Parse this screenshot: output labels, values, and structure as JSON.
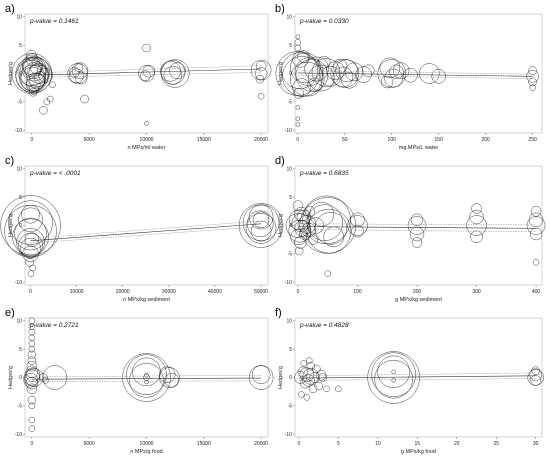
{
  "figure": {
    "background": "#ffffff",
    "ink": "#000000"
  },
  "chart_data": [
    {
      "id": "a",
      "type": "scatter",
      "panel_label": "a)",
      "annotation": "p-value = 0.1461",
      "xlabel": "n MPs/ml water",
      "ylabel": "Hedges'g",
      "xlim": [
        -600,
        20600
      ],
      "ylim": [
        -10.5,
        10.5
      ],
      "xticks": [
        0,
        5000,
        10000,
        15000,
        20000
      ],
      "xtick_labels": [
        "0",
        "5000",
        "10000",
        "15000",
        "20000"
      ],
      "yticks": [
        -10,
        -5,
        0,
        5,
        10
      ],
      "ytick_labels": [
        "-10",
        "-5",
        "0",
        "5",
        "10"
      ],
      "fit": {
        "x": [
          0,
          20000
        ],
        "y": [
          -0.3,
          0.8
        ],
        "ci_low": [
          -0.7,
          0.2
        ],
        "ci_high": [
          0.1,
          1.4
        ]
      },
      "points": [
        [
          0,
          0,
          20
        ],
        [
          0,
          -0.5,
          16
        ],
        [
          0,
          0.3,
          14
        ],
        [
          50,
          1.5,
          10
        ],
        [
          80,
          -1,
          12
        ],
        [
          100,
          0.5,
          8
        ],
        [
          120,
          -2,
          7
        ],
        [
          20,
          2.5,
          6
        ],
        [
          150,
          -0.2,
          18
        ],
        [
          200,
          0.8,
          12
        ],
        [
          300,
          -1.5,
          9
        ],
        [
          400,
          1,
          6
        ],
        [
          500,
          -0.4,
          11
        ],
        [
          250,
          0.2,
          15
        ],
        [
          60,
          -0.8,
          13
        ],
        [
          40,
          1,
          9
        ],
        [
          180,
          -2.8,
          5
        ],
        [
          350,
          2,
          4
        ],
        [
          1200,
          -0.3,
          7
        ],
        [
          600,
          0,
          10
        ],
        [
          900,
          0.6,
          5
        ],
        [
          700,
          -0.7,
          6
        ],
        [
          100,
          -3.3,
          4
        ],
        [
          -50,
          3.2,
          5
        ],
        [
          450,
          -1.3,
          8
        ],
        [
          1000,
          -6.5,
          4
        ],
        [
          1300,
          -5,
          3
        ],
        [
          1600,
          -4.5,
          3
        ],
        [
          1800,
          -2,
          3
        ],
        [
          4000,
          0,
          10
        ],
        [
          4200,
          0.5,
          8
        ],
        [
          3900,
          -0.4,
          7
        ],
        [
          4300,
          -0.8,
          6
        ],
        [
          4600,
          -4.5,
          4
        ],
        [
          3700,
          0.2,
          5
        ],
        [
          4100,
          1,
          4
        ],
        [
          10000,
          4.5,
          4
        ],
        [
          10000,
          0,
          8
        ],
        [
          10200,
          0.4,
          6
        ],
        [
          9900,
          -0.4,
          5
        ],
        [
          10000,
          -8.8,
          2
        ],
        [
          12300,
          0.2,
          12
        ],
        [
          12500,
          0,
          14
        ],
        [
          12100,
          0.4,
          10
        ],
        [
          12300,
          -0.3,
          9
        ],
        [
          12700,
          0.5,
          8
        ],
        [
          20000,
          0.6,
          10
        ],
        [
          20000,
          0,
          6
        ],
        [
          20000,
          1.3,
          5
        ],
        [
          19900,
          -1,
          4
        ],
        [
          20000,
          -4,
          3
        ]
      ]
    },
    {
      "id": "b",
      "type": "scatter",
      "panel_label": "b)",
      "annotation": "p-value = 0.0330",
      "xlabel": "mg MPs/L water",
      "ylabel": "Hedges'g",
      "xlim": [
        -3,
        260
      ],
      "ylim": [
        -10.5,
        10.5
      ],
      "xticks": [
        0,
        50,
        100,
        150,
        200,
        250
      ],
      "xtick_labels": [
        "0",
        "50",
        "100",
        "150",
        "200",
        "250"
      ],
      "yticks": [
        -10,
        -5,
        0,
        5,
        10
      ],
      "ytick_labels": [
        "-10",
        "-5",
        "0",
        "5",
        "10"
      ],
      "fit": {
        "x": [
          0,
          250
        ],
        "y": [
          0.1,
          -0.5
        ],
        "ci_low": [
          -0.3,
          -0.9
        ],
        "ci_high": [
          0.5,
          -0.1
        ]
      },
      "points": [
        [
          0,
          0,
          22
        ],
        [
          2,
          0.5,
          18
        ],
        [
          5,
          -0.5,
          20
        ],
        [
          8,
          1,
          15
        ],
        [
          10,
          -1,
          17
        ],
        [
          12,
          0.3,
          14
        ],
        [
          15,
          -0.3,
          16
        ],
        [
          20,
          0.8,
          12
        ],
        [
          25,
          -0.8,
          13
        ],
        [
          30,
          0.2,
          14
        ],
        [
          3,
          2.5,
          8
        ],
        [
          4,
          -2.5,
          9
        ],
        [
          6,
          3,
          6
        ],
        [
          1,
          -3.5,
          5
        ],
        [
          0,
          5.5,
          3
        ],
        [
          0,
          6.5,
          2
        ],
        [
          0,
          -6,
          2
        ],
        [
          0,
          -8,
          2
        ],
        [
          0,
          -9,
          2
        ],
        [
          0,
          4.5,
          3
        ],
        [
          18,
          -2,
          7
        ],
        [
          28,
          2,
          6
        ],
        [
          35,
          -0.5,
          10
        ],
        [
          40,
          0.5,
          9
        ],
        [
          50,
          0,
          14
        ],
        [
          52,
          0.5,
          11
        ],
        [
          48,
          -0.6,
          10
        ],
        [
          55,
          -1.2,
          8
        ],
        [
          45,
          1.3,
          7
        ],
        [
          60,
          0.3,
          9
        ],
        [
          70,
          -0.2,
          8
        ],
        [
          75,
          0.5,
          6
        ],
        [
          100,
          0,
          14
        ],
        [
          98,
          1,
          10
        ],
        [
          102,
          -0.8,
          9
        ],
        [
          105,
          0.3,
          7
        ],
        [
          95,
          -1.5,
          6
        ],
        [
          110,
          0.5,
          8
        ],
        [
          120,
          -0.3,
          7
        ],
        [
          140,
          0,
          10
        ],
        [
          150,
          -0.5,
          7
        ],
        [
          250,
          -0.5,
          6
        ],
        [
          250,
          -1.5,
          4
        ],
        [
          250,
          0.5,
          4
        ],
        [
          250,
          -2.5,
          3
        ]
      ]
    },
    {
      "id": "c",
      "type": "scatter",
      "panel_label": "c)",
      "annotation": "p-value = < .0001",
      "xlabel": "n MPs/kg sediment",
      "ylabel": "Hedges'g",
      "xlim": [
        -1200,
        51500
      ],
      "ylim": [
        -10.5,
        10.5
      ],
      "xticks": [
        0,
        10000,
        20000,
        30000,
        40000,
        50000
      ],
      "xtick_labels": [
        "0",
        "10000",
        "20000",
        "30000",
        "40000",
        "50000"
      ],
      "yticks": [
        -10,
        -5,
        0,
        5,
        10
      ],
      "ytick_labels": [
        "-10",
        "-5",
        "0",
        "5",
        "10"
      ],
      "fit": {
        "x": [
          0,
          50000
        ],
        "y": [
          -2.7,
          0.3
        ],
        "ci_low": [
          -3.1,
          -0.2
        ],
        "ci_high": [
          -2.3,
          0.8
        ]
      },
      "points": [
        [
          0,
          0,
          30
        ],
        [
          0,
          -1,
          26
        ],
        [
          0,
          0.5,
          22
        ],
        [
          0,
          -2,
          18
        ],
        [
          0,
          -3,
          14
        ],
        [
          0,
          1,
          12
        ],
        [
          0,
          -4,
          10
        ],
        [
          0,
          -5,
          8
        ],
        [
          0,
          2,
          9
        ],
        [
          300,
          -2.5,
          7
        ],
        [
          -200,
          -6.5,
          4
        ],
        [
          100,
          -8.5,
          3
        ],
        [
          500,
          -7.5,
          3
        ],
        [
          0,
          -1.5,
          16
        ],
        [
          0,
          -3.5,
          12
        ],
        [
          50000,
          0,
          22
        ],
        [
          50000,
          0.5,
          18
        ],
        [
          50000,
          -0.5,
          15
        ],
        [
          50000,
          1.5,
          12
        ],
        [
          50000,
          -1,
          10
        ],
        [
          49800,
          0.3,
          13
        ],
        [
          50000,
          1,
          8
        ]
      ]
    },
    {
      "id": "d",
      "type": "scatter",
      "panel_label": "d)",
      "annotation": "p-value = 0.6835",
      "xlabel": "g MPs/kg sediment",
      "ylabel": "Hedges'g",
      "xlim": [
        -5,
        410
      ],
      "ylim": [
        -10.5,
        10.5
      ],
      "xticks": [
        0,
        100,
        200,
        300,
        400
      ],
      "xtick_labels": [
        "0",
        "100",
        "200",
        "300",
        "400"
      ],
      "yticks": [
        -10,
        -5,
        0,
        5,
        10
      ],
      "ytick_labels": [
        "-10",
        "-5",
        "0",
        "5",
        "10"
      ],
      "fit": {
        "x": [
          0,
          400
        ],
        "y": [
          -0.2,
          -0.5
        ],
        "ci_low": [
          -0.7,
          -1.1
        ],
        "ci_high": [
          0.3,
          0.1
        ]
      },
      "points": [
        [
          0,
          0,
          12
        ],
        [
          2,
          1,
          10
        ],
        [
          3,
          -1,
          11
        ],
        [
          5,
          0.5,
          9
        ],
        [
          1,
          -2,
          8
        ],
        [
          6,
          2,
          7
        ],
        [
          4,
          -3,
          6
        ],
        [
          8,
          -0.5,
          8
        ],
        [
          10,
          1.5,
          7
        ],
        [
          12,
          -1.5,
          6
        ],
        [
          0,
          3.5,
          5
        ],
        [
          2,
          -4.5,
          4
        ],
        [
          15,
          0.2,
          9
        ],
        [
          18,
          -0.8,
          7
        ],
        [
          20,
          2.5,
          5
        ],
        [
          25,
          -2.5,
          5
        ],
        [
          30,
          0,
          8
        ],
        [
          50,
          0,
          28
        ],
        [
          48,
          1,
          24
        ],
        [
          52,
          -1,
          22
        ],
        [
          45,
          0.5,
          18
        ],
        [
          55,
          -0.5,
          16
        ],
        [
          40,
          2,
          12
        ],
        [
          60,
          -2,
          10
        ],
        [
          50,
          -8.5,
          3
        ],
        [
          100,
          0,
          10
        ],
        [
          100,
          1,
          7
        ],
        [
          100,
          -1,
          6
        ],
        [
          200,
          0,
          9
        ],
        [
          200,
          -1.5,
          7
        ],
        [
          200,
          1,
          6
        ],
        [
          200,
          -3,
          5
        ],
        [
          300,
          0,
          10
        ],
        [
          300,
          1.5,
          7
        ],
        [
          300,
          -2,
          6
        ],
        [
          300,
          3,
          5
        ],
        [
          400,
          0,
          9
        ],
        [
          400,
          1,
          7
        ],
        [
          400,
          -1.5,
          6
        ],
        [
          400,
          2.5,
          5
        ],
        [
          400,
          -6.5,
          3
        ]
      ]
    },
    {
      "id": "e",
      "type": "scatter",
      "panel_label": "e)",
      "annotation": "p-value = 0.2721",
      "xlabel": "n MPs/g food",
      "ylabel": "Hedges'g",
      "xlim": [
        -600,
        20600
      ],
      "ylim": [
        -10.5,
        10.5
      ],
      "xticks": [
        0,
        5000,
        10000,
        15000,
        20000
      ],
      "xtick_labels": [
        "0",
        "5000",
        "10000",
        "15000",
        "20000"
      ],
      "yticks": [
        -10,
        -5,
        0,
        5,
        10
      ],
      "ytick_labels": [
        "-10",
        "-5",
        "0",
        "5",
        "10"
      ],
      "fit": {
        "x": [
          0,
          20000
        ],
        "y": [
          -0.3,
          -0.1
        ],
        "ci_low": [
          -0.7,
          -0.6
        ],
        "ci_high": [
          0.1,
          0.4
        ]
      },
      "points": [
        [
          0,
          0,
          8
        ],
        [
          0,
          1,
          6
        ],
        [
          0,
          -1,
          6
        ],
        [
          0,
          2,
          5
        ],
        [
          0,
          -2,
          5
        ],
        [
          0,
          3,
          4
        ],
        [
          0,
          4,
          4
        ],
        [
          0,
          5,
          3
        ],
        [
          0,
          -4,
          4
        ],
        [
          0,
          -5,
          3
        ],
        [
          0,
          6,
          3
        ],
        [
          0,
          7,
          3
        ],
        [
          0,
          8,
          3
        ],
        [
          0,
          9,
          3
        ],
        [
          0,
          10,
          3
        ],
        [
          0,
          -7.5,
          3
        ],
        [
          0,
          -9,
          3
        ],
        [
          100,
          0.5,
          7
        ],
        [
          -100,
          -0.5,
          7
        ],
        [
          200,
          0,
          9
        ],
        [
          1000,
          0,
          4
        ],
        [
          1200,
          -0.5,
          3
        ],
        [
          2000,
          0,
          12
        ],
        [
          10000,
          0,
          24
        ],
        [
          10000,
          0.5,
          20
        ],
        [
          10000,
          -0.5,
          17
        ],
        [
          10000,
          1,
          14
        ],
        [
          10000,
          0,
          3
        ],
        [
          10000,
          -0.8,
          2
        ],
        [
          10000,
          0.4,
          2
        ],
        [
          12000,
          0,
          10
        ],
        [
          11800,
          0.5,
          8
        ],
        [
          12200,
          -0.5,
          7
        ],
        [
          20000,
          0,
          12
        ],
        [
          20000,
          0.5,
          9
        ]
      ]
    },
    {
      "id": "f",
      "type": "scatter",
      "panel_label": "f)",
      "annotation": "p-value = 0.4828",
      "xlabel": "g MPs/kg food",
      "ylabel": "Hedges'g",
      "xlim": [
        -0.5,
        30.8
      ],
      "ylim": [
        -10.5,
        10.5
      ],
      "xticks": [
        0,
        5,
        10,
        15,
        20,
        25,
        30
      ],
      "xtick_labels": [
        "0",
        "5",
        "10",
        "15",
        "20",
        "25",
        "30"
      ],
      "yticks": [
        -10,
        -5,
        0,
        5,
        10
      ],
      "ytick_labels": [
        "-10",
        "-5",
        "0",
        "5",
        "10"
      ],
      "fit": {
        "x": [
          0,
          30
        ],
        "y": [
          -0.1,
          0.3
        ],
        "ci_low": [
          -0.5,
          -0.2
        ],
        "ci_high": [
          0.3,
          0.8
        ]
      },
      "points": [
        [
          0.2,
          0,
          6
        ],
        [
          0.5,
          1,
          5
        ],
        [
          0.8,
          -1,
          5
        ],
        [
          1,
          0.5,
          7
        ],
        [
          1.2,
          -0.5,
          6
        ],
        [
          1.5,
          2,
          4
        ],
        [
          1.8,
          -2,
          4
        ],
        [
          2,
          0,
          5
        ],
        [
          2.2,
          1.5,
          4
        ],
        [
          2.5,
          -1.5,
          4
        ],
        [
          0.3,
          -3,
          3
        ],
        [
          1,
          -3.5,
          3
        ],
        [
          3,
          0,
          4
        ],
        [
          3.5,
          -2,
          3
        ],
        [
          5,
          -2,
          3
        ],
        [
          1.5,
          0.2,
          8
        ],
        [
          2.8,
          0.4,
          5
        ],
        [
          1.3,
          3,
          3
        ],
        [
          0.6,
          2.5,
          3
        ],
        [
          12,
          0,
          26
        ],
        [
          12,
          0.5,
          22
        ],
        [
          12,
          -0.3,
          19
        ],
        [
          12,
          1,
          16
        ],
        [
          12,
          1,
          2
        ],
        [
          12,
          -0.5,
          2
        ],
        [
          30,
          0,
          8
        ],
        [
          30,
          0.5,
          6
        ],
        [
          30,
          -0.5,
          5
        ],
        [
          30,
          1.2,
          4
        ]
      ]
    }
  ]
}
